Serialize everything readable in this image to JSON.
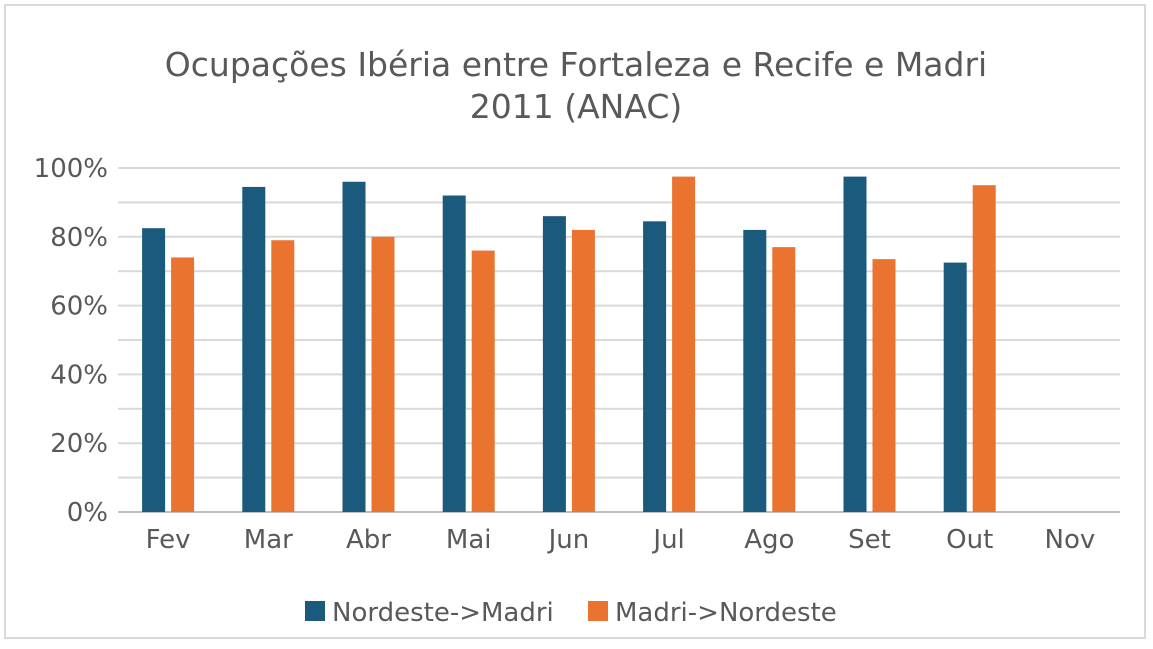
{
  "chart_data": {
    "type": "bar",
    "title": "Ocupações Ibéria entre Fortaleza e Recife e Madri",
    "subtitle": "2011 (ANAC)",
    "categories": [
      "Fev",
      "Mar",
      "Abr",
      "Mai",
      "Jun",
      "Jul",
      "Ago",
      "Set",
      "Out",
      "Nov"
    ],
    "series": [
      {
        "name": "Nordeste->Madri",
        "color": "#1a5a7c",
        "values": [
          82.5,
          94.5,
          96,
          92,
          86,
          84.5,
          82,
          97.5,
          72.5,
          null
        ]
      },
      {
        "name": "Madri->Nordeste",
        "color": "#ea7330",
        "values": [
          74,
          79,
          80,
          76,
          82,
          97.5,
          77,
          73.5,
          95,
          null
        ]
      }
    ],
    "ylim": [
      0,
      100
    ],
    "yticks": [
      0,
      20,
      40,
      60,
      80,
      100
    ],
    "ytick_labels": [
      "0%",
      "20%",
      "40%",
      "60%",
      "80%",
      "100%"
    ],
    "xlabel": "",
    "ylabel": "",
    "grid": true,
    "legend_position": "bottom"
  }
}
